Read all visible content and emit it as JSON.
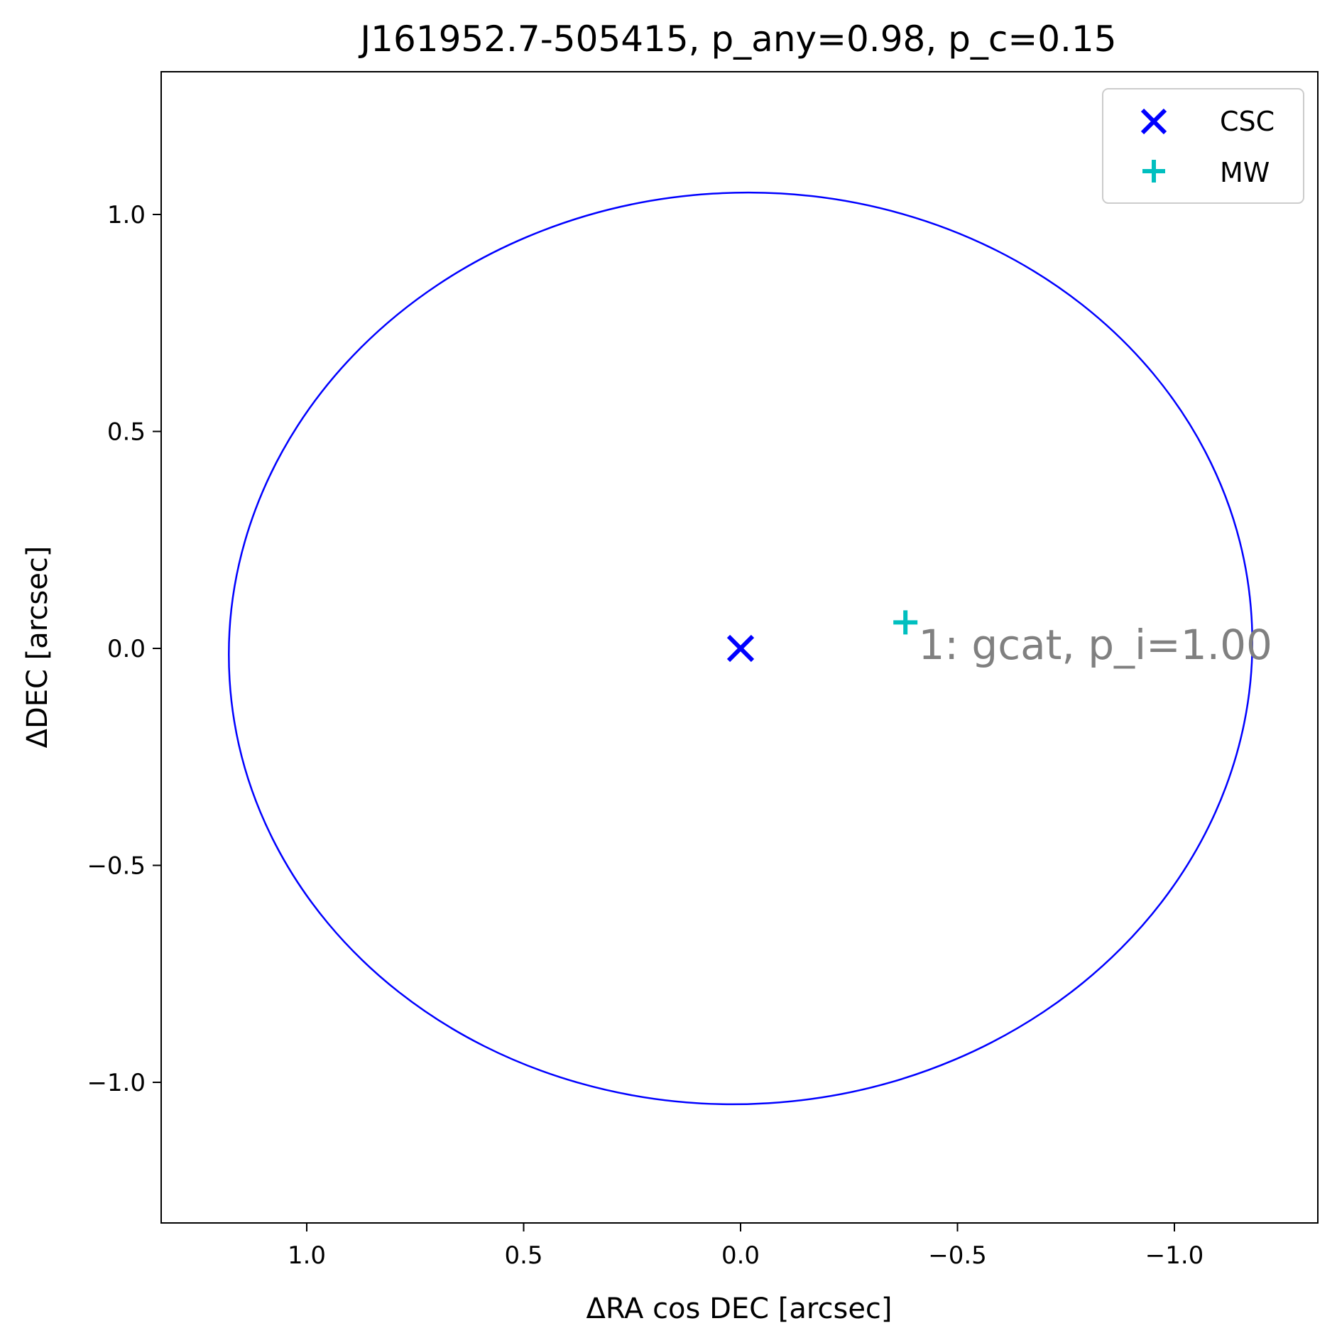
{
  "chart_data": {
    "type": "scatter",
    "title": "J161952.7-505415, p_any=0.98, p_c=0.15",
    "xlabel": "ΔRA cos DEC [arcsec]",
    "ylabel": "ΔDEC [arcsec]",
    "xlim": [
      1.34,
      -1.34
    ],
    "ylim": [
      -1.34,
      1.34
    ],
    "x_inverted": true,
    "grid": false,
    "xticks": [
      {
        "value": 1.0,
        "label": "1.0"
      },
      {
        "value": 0.5,
        "label": "0.5"
      },
      {
        "value": 0.0,
        "label": "0.0"
      },
      {
        "value": -0.5,
        "label": "−0.5"
      },
      {
        "value": -1.0,
        "label": "−1.0"
      }
    ],
    "yticks": [
      {
        "value": 1.0,
        "label": "1.0"
      },
      {
        "value": 0.5,
        "label": "0.5"
      },
      {
        "value": 0.0,
        "label": "0.0"
      },
      {
        "value": -0.5,
        "label": "−0.5"
      },
      {
        "value": -1.0,
        "label": "−1.0"
      }
    ],
    "series": [
      {
        "name": "CSC",
        "marker": "x",
        "color": "#0000ff",
        "points": [
          {
            "x": 0.0,
            "y": 0.0
          }
        ]
      },
      {
        "name": "MW",
        "marker": "+",
        "color": "#00bfbf",
        "points": [
          {
            "x": -0.38,
            "y": 0.06
          }
        ]
      }
    ],
    "error_ellipse": {
      "center": [
        0.0,
        0.0
      ],
      "semi_major": 1.18,
      "semi_minor": 1.05,
      "angle_deg": -3.5,
      "color": "#0000ff"
    },
    "annotations": [
      {
        "text": "1: gcat, p_i=1.00",
        "x": -0.41,
        "y": 0.0,
        "color": "#808080"
      }
    ],
    "legend": {
      "position": "top-right",
      "entries": [
        {
          "label": "CSC",
          "marker": "x",
          "color": "#0000ff"
        },
        {
          "label": "MW",
          "marker": "+",
          "color": "#00bfbf"
        }
      ]
    }
  }
}
